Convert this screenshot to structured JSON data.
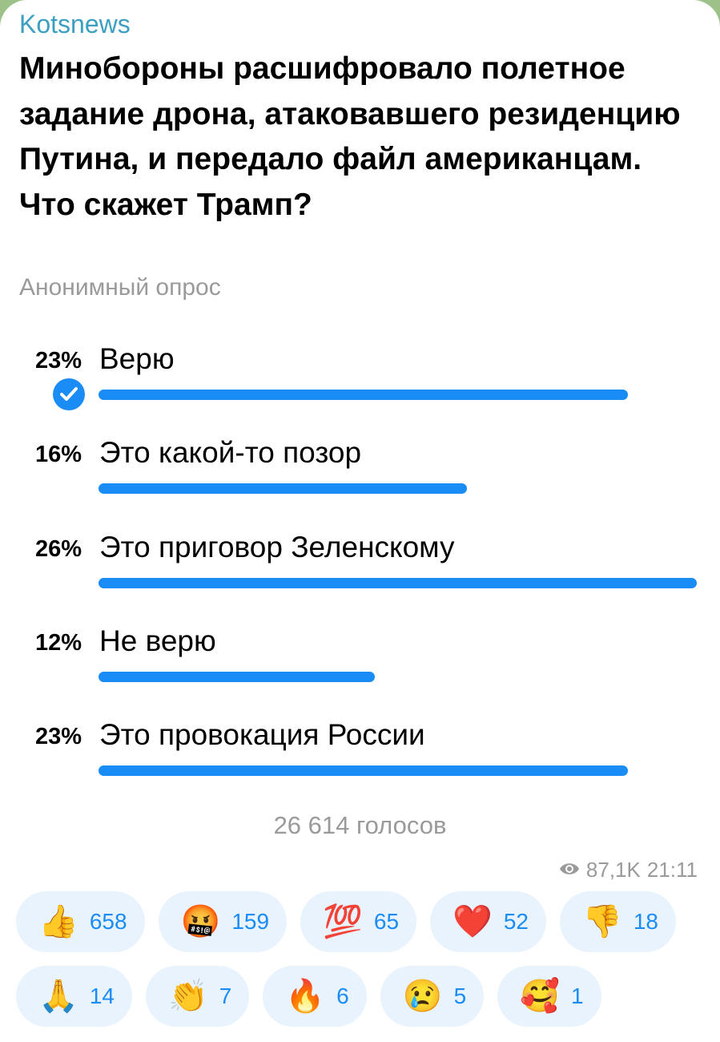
{
  "channel": "Kotsnews",
  "poll": {
    "question": "Минобороны расшифровало полетное задание дрона, атаковавшего резиденцию Путина, и передало файл американцам. Что скажет Трамп?",
    "type_label": "Анонимный опрос",
    "options": [
      {
        "percent_label": "23%",
        "percent": 23,
        "text": "Верю",
        "selected": true
      },
      {
        "percent_label": "16%",
        "percent": 16,
        "text": "Это какой-то позор",
        "selected": false
      },
      {
        "percent_label": "26%",
        "percent": 26,
        "text": "Это приговор Зеленскому",
        "selected": false
      },
      {
        "percent_label": "12%",
        "percent": 12,
        "text": "Не верю",
        "selected": false
      },
      {
        "percent_label": "23%",
        "percent": 23,
        "text": "Это провокация России",
        "selected": false
      }
    ],
    "votes": "26 614 голосов"
  },
  "meta": {
    "views": "87,1K",
    "time": "21:11",
    "views_icon": "eye-icon"
  },
  "reactions": [
    {
      "emoji": "👍",
      "name": "thumbs-up",
      "count": "658"
    },
    {
      "emoji": "🤬",
      "name": "cursing-face",
      "count": "159"
    },
    {
      "emoji": "💯",
      "name": "hundred-points",
      "count": "65"
    },
    {
      "emoji": "❤️",
      "name": "red-heart",
      "count": "52"
    },
    {
      "emoji": "👎",
      "name": "thumbs-down",
      "count": "18"
    },
    {
      "emoji": "🙏",
      "name": "folded-hands",
      "count": "14"
    },
    {
      "emoji": "👏",
      "name": "clapping-hands",
      "count": "7"
    },
    {
      "emoji": "🔥",
      "name": "fire",
      "count": "6"
    },
    {
      "emoji": "😢",
      "name": "crying-face",
      "count": "5"
    },
    {
      "emoji": "🥰",
      "name": "smiling-face-with-hearts",
      "count": "1"
    }
  ],
  "colors": {
    "accent": "#1a8cf5",
    "channel": "#3a9fc0",
    "reaction_bg": "#e8f3fe"
  }
}
